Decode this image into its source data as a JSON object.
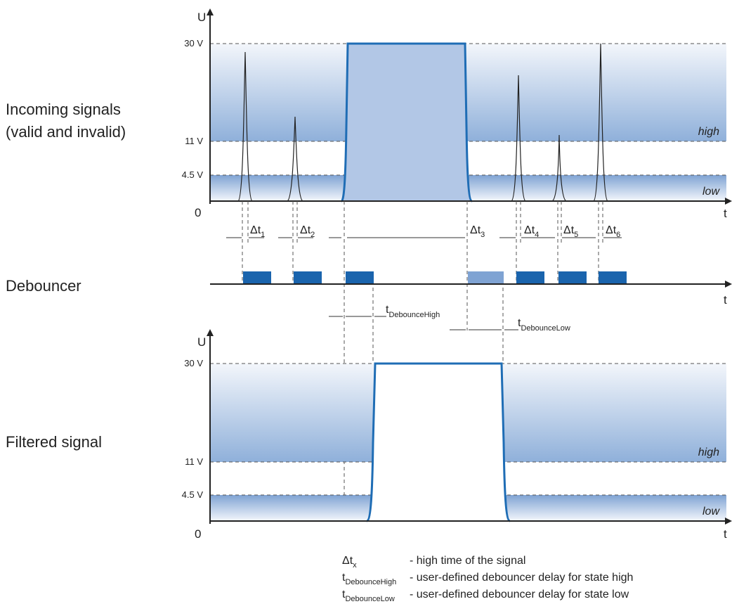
{
  "labels": {
    "incoming_line1": "Incoming signals",
    "incoming_line2": "(valid and invalid)",
    "debouncer": "Debouncer",
    "filtered": "Filtered signal"
  },
  "axes": {
    "y_axis_letter": "U",
    "x_axis_letter": "t",
    "origin": "0",
    "level_high_max": "30 V",
    "level_high_min": "11 V",
    "level_low_max": "4.5 V"
  },
  "zones": {
    "high": "high",
    "low": "low"
  },
  "deltas": [
    {
      "main": "Δt",
      "sub": "1"
    },
    {
      "main": "Δt",
      "sub": "2"
    },
    {
      "main": "Δt",
      "sub": "3"
    },
    {
      "main": "Δt",
      "sub": "4"
    },
    {
      "main": "Δt",
      "sub": "5"
    },
    {
      "main": "Δt",
      "sub": "6"
    }
  ],
  "debounce_labels": {
    "high": {
      "main": "t",
      "sub": "DebounceHigh"
    },
    "low": {
      "main": "t",
      "sub": "DebounceLow"
    }
  },
  "legend": [
    {
      "main": "Δt",
      "sub": "x",
      "desc": "- high time of the signal"
    },
    {
      "main": "t",
      "sub": "DebounceHigh",
      "desc": "- user-defined debouncer delay for state high"
    },
    {
      "main": "t",
      "sub": "DebounceLow",
      "desc": "- user-defined debouncer delay for state low"
    }
  ],
  "colors": {
    "signal": "#1f6db5",
    "pulse_block": "#1a64ad",
    "pulse_block_light": "#7fa3d3",
    "zone_dark": "#8fb0da",
    "zone_light": "#f4f7fc",
    "signal_fill": "#b2c7e6"
  }
}
